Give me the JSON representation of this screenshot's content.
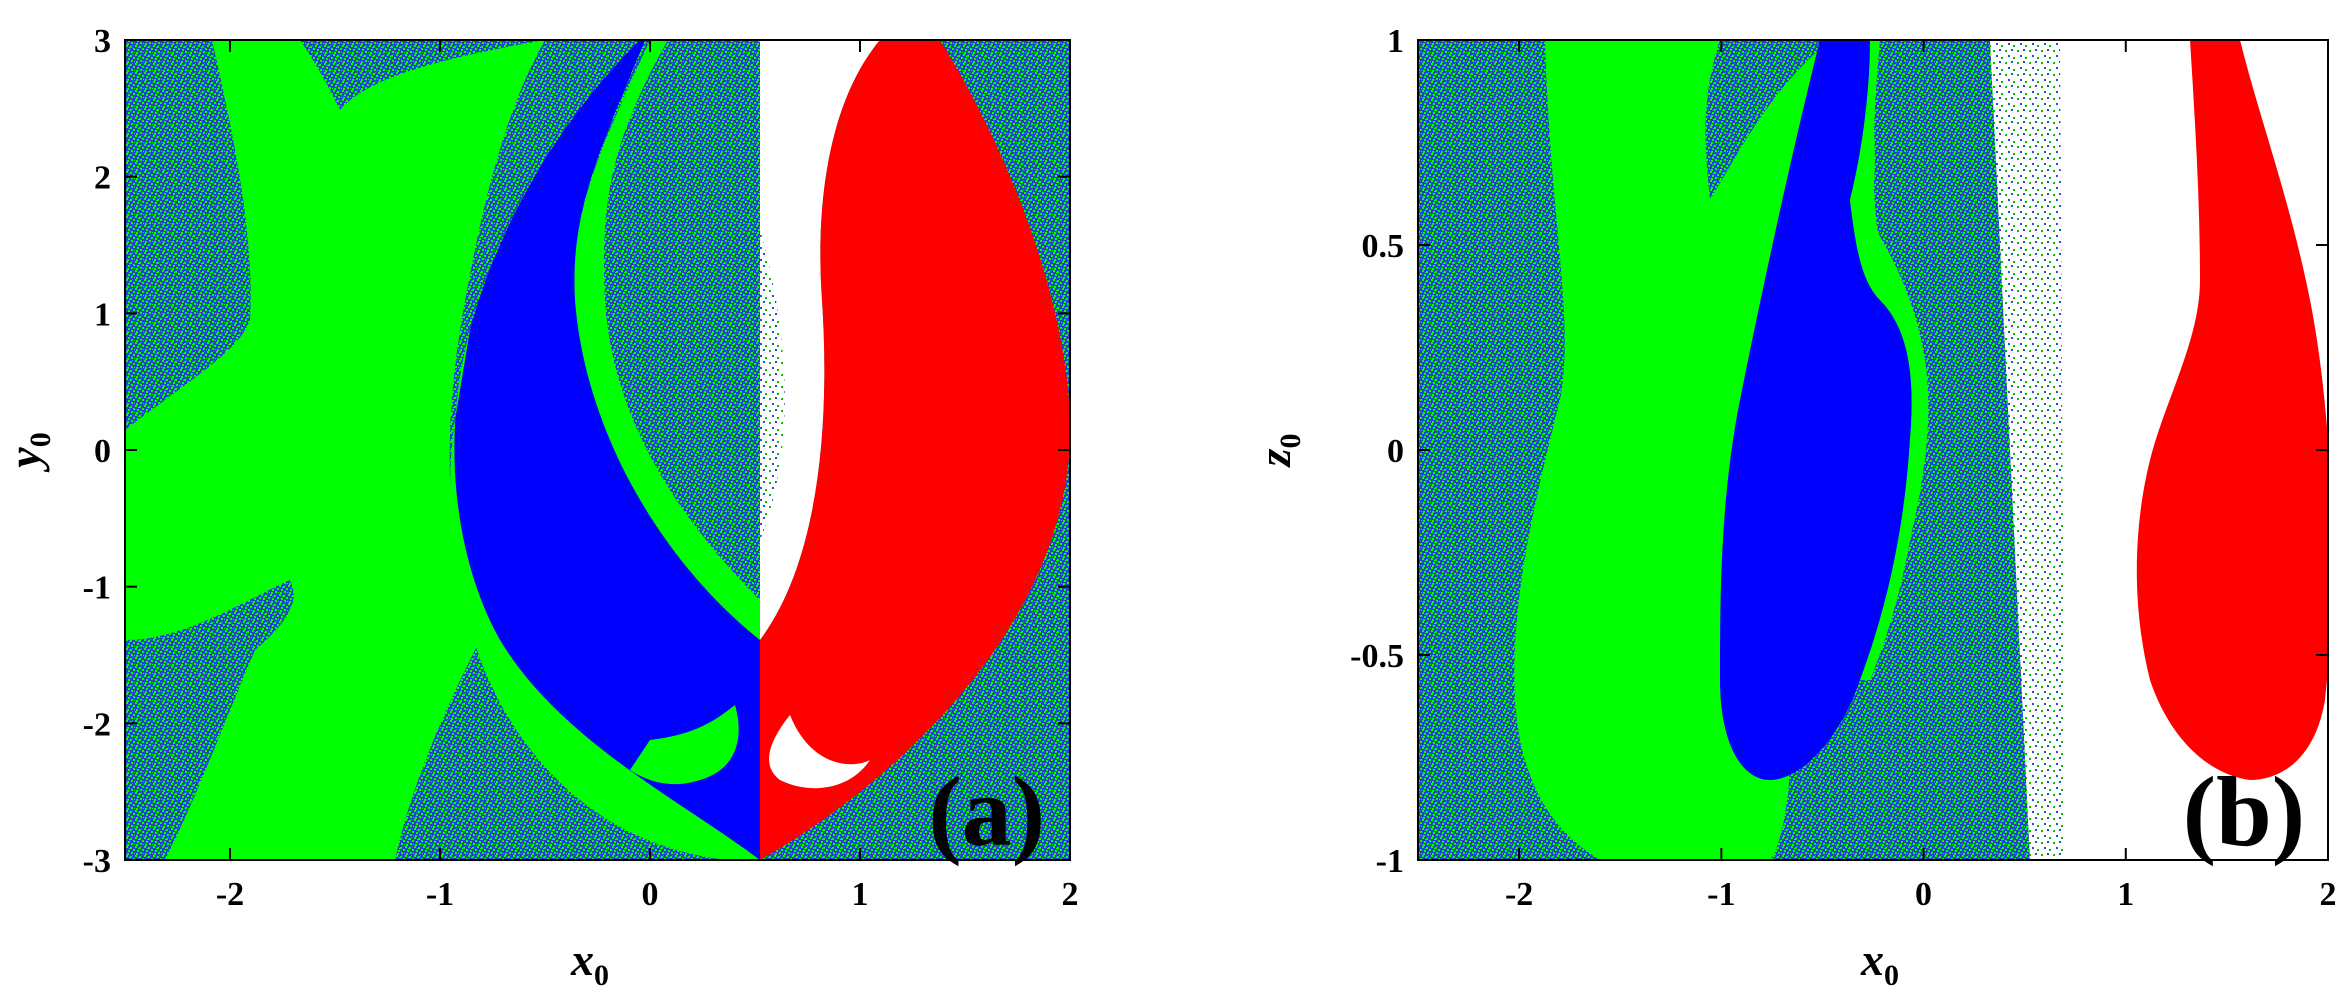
{
  "chart_data": [
    {
      "type": "heatmap",
      "panel": "(a)",
      "xlabel": "x",
      "xlabel_sub": "0",
      "ylabel": "y",
      "ylabel_sub": "0",
      "xlim": [
        -2.5,
        2
      ],
      "ylim": [
        -3,
        3
      ],
      "xticks": [
        "-2",
        "-1",
        "0",
        "1",
        "2"
      ],
      "yticks": [
        "3",
        "2",
        "1",
        "0",
        "-1",
        "-2",
        "-3"
      ],
      "xtick_values": [
        -2,
        -1,
        0,
        1,
        2
      ],
      "ytick_values": [
        3,
        2,
        1,
        0,
        -1,
        -2,
        -3
      ],
      "colors": {
        "green": "#00ff00",
        "blue": "#0000ff",
        "red": "#ff0000",
        "white": "#ffffff"
      },
      "grid": false
    },
    {
      "type": "heatmap",
      "panel": "(b)",
      "xlabel": "x",
      "xlabel_sub": "0",
      "ylabel": "z",
      "ylabel_sub": "0",
      "xlim": [
        -2.5,
        2
      ],
      "ylim": [
        -1,
        1
      ],
      "xticks": [
        "-2",
        "-1",
        "0",
        "1",
        "2"
      ],
      "yticks": [
        "1",
        "0.5",
        "0",
        "-0.5",
        "-1"
      ],
      "xtick_values": [
        -2,
        -1,
        0,
        1,
        2
      ],
      "ytick_values": [
        1,
        0.5,
        0,
        -0.5,
        -1
      ],
      "colors": {
        "green": "#00ff00",
        "blue": "#0000ff",
        "red": "#ff0000",
        "white": "#ffffff"
      },
      "grid": false
    }
  ]
}
